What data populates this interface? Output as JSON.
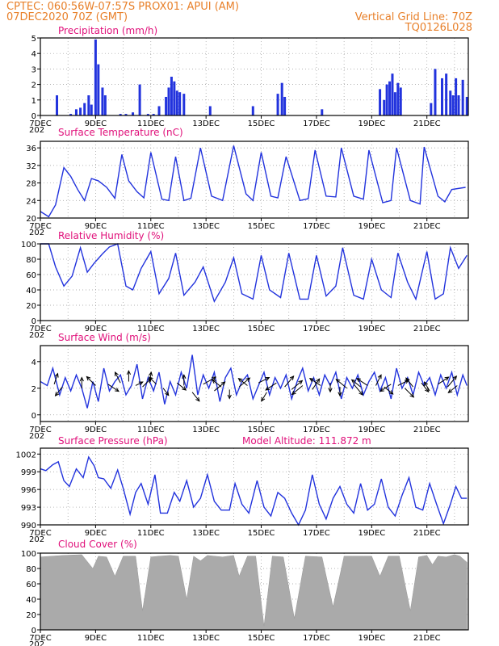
{
  "header": {
    "line1_left": "CPTEC:   060:56W-07:57S   PROX01: APUI (AM)",
    "line2_left": "07DEC2020 70Z (GMT)",
    "line2_right": "Vertical Grid Line: 70Z",
    "line3_right": "TQ0126L028"
  },
  "colors": {
    "header": "#e8802a",
    "title": "#e0107a",
    "series": "#2233dd",
    "cloud": "#aaaaaa",
    "wind_arrow": "#000000"
  },
  "x_tick_labels": [
    "7DEC",
    "9DEC",
    "11DEC",
    "13DEC",
    "15DEC",
    "17DEC",
    "19DEC",
    "21DEC"
  ],
  "x_year_fragment": "202",
  "model_altitude": "Model Altitude: 111.872 m",
  "chart_data": [
    {
      "id": "precip",
      "type": "bar",
      "title": "Precipitation (mm/h)",
      "x_unit": "days since 7DEC 00Z",
      "ylim": [
        0,
        5
      ],
      "yticks": [
        "0",
        "1",
        "2",
        "3",
        "4",
        "5"
      ],
      "x": [
        0.6,
        1.1,
        1.3,
        1.45,
        1.6,
        1.75,
        1.85,
        2.0,
        2.1,
        2.25,
        2.35,
        2.9,
        3.1,
        3.35,
        3.6,
        3.9,
        4.1,
        4.3,
        4.55,
        4.65,
        4.75,
        4.85,
        4.95,
        5.05,
        5.2,
        6.15,
        7.7,
        8.6,
        8.75,
        8.85,
        10.2,
        12.3,
        12.45,
        12.55,
        12.65,
        12.75,
        12.85,
        12.95,
        13.05,
        14.15,
        14.3,
        14.55,
        14.7,
        14.85,
        14.95,
        15.05,
        15.15,
        15.3,
        15.45
      ],
      "values": [
        1.3,
        0.1,
        0.4,
        0.5,
        0.8,
        1.3,
        0.7,
        4.9,
        3.3,
        1.8,
        1.3,
        0.1,
        0.1,
        0.2,
        2.0,
        0.1,
        0.1,
        0.6,
        1.2,
        1.8,
        2.5,
        2.2,
        1.6,
        1.5,
        1.4,
        0.6,
        0.6,
        1.4,
        2.1,
        1.2,
        0.4,
        1.7,
        1.0,
        2.0,
        2.2,
        2.7,
        1.5,
        2.1,
        1.8,
        0.8,
        3.0,
        2.4,
        2.7,
        1.6,
        1.3,
        2.4,
        1.3,
        2.3,
        1.2
      ]
    },
    {
      "id": "temp",
      "type": "line",
      "title": "Surface Temperature (nC)",
      "x_unit": "days since 7DEC 00Z",
      "ylim": [
        20,
        37.5
      ],
      "yticks": [
        "20",
        "24",
        "28",
        "32",
        "36"
      ],
      "x": [
        0,
        0.3,
        0.55,
        0.85,
        1.1,
        1.35,
        1.6,
        1.85,
        2.1,
        2.4,
        2.7,
        2.95,
        3.2,
        3.5,
        3.75,
        4.0,
        4.4,
        4.65,
        4.9,
        5.2,
        5.45,
        5.8,
        6.2,
        6.6,
        7.0,
        7.45,
        7.7,
        8.0,
        8.35,
        8.6,
        8.9,
        9.4,
        9.7,
        9.95,
        10.35,
        10.7,
        10.9,
        11.35,
        11.7,
        11.9,
        12.4,
        12.7,
        12.9,
        13.4,
        13.75,
        13.9,
        14.4,
        14.65,
        14.9,
        15.4
      ],
      "y": [
        21.5,
        20.3,
        23.0,
        31.5,
        29.5,
        26.5,
        24.0,
        29.0,
        28.5,
        27.0,
        24.5,
        34.5,
        28.5,
        26.0,
        24.6,
        35.0,
        24.3,
        24.0,
        34.0,
        24.0,
        24.5,
        36.0,
        25.0,
        24.0,
        36.5,
        25.5,
        24.0,
        35.0,
        25.0,
        24.6,
        34.0,
        24.0,
        24.4,
        35.5,
        25.0,
        24.8,
        36.0,
        25.0,
        24.3,
        35.5,
        23.5,
        24.0,
        36.0,
        24.0,
        23.2,
        36.2,
        25.0,
        23.7,
        26.5,
        27.0
      ]
    },
    {
      "id": "rh",
      "type": "line",
      "title": "Relative Humidity (%)",
      "x_unit": "days since 7DEC 00Z",
      "ylim": [
        0,
        100
      ],
      "yticks": [
        "0",
        "20",
        "40",
        "60",
        "80",
        "100"
      ],
      "x": [
        0,
        0.3,
        0.55,
        0.85,
        1.15,
        1.45,
        1.7,
        1.95,
        2.25,
        2.5,
        2.8,
        3.1,
        3.35,
        3.65,
        4.0,
        4.3,
        4.65,
        4.9,
        5.2,
        5.6,
        5.9,
        6.3,
        6.7,
        7.0,
        7.3,
        7.7,
        8.0,
        8.3,
        8.7,
        9.0,
        9.4,
        9.7,
        10.0,
        10.35,
        10.7,
        10.95,
        11.35,
        11.7,
        12.0,
        12.35,
        12.7,
        12.95,
        13.3,
        13.6,
        14.0,
        14.3,
        14.6,
        14.85,
        15.15,
        15.45
      ],
      "y": [
        100,
        100,
        70,
        45,
        58,
        95,
        63,
        75,
        87,
        96,
        100,
        45,
        40,
        68,
        90,
        35,
        55,
        88,
        33,
        50,
        70,
        25,
        50,
        82,
        35,
        28,
        85,
        40,
        30,
        88,
        28,
        28,
        85,
        32,
        45,
        95,
        33,
        28,
        80,
        40,
        30,
        88,
        50,
        28,
        90,
        28,
        35,
        95,
        68,
        85
      ]
    },
    {
      "id": "wind",
      "type": "line",
      "title": "Surface Wind (m/s)",
      "x_unit": "days since 7DEC 00Z",
      "ylim": [
        -0.5,
        5.2
      ],
      "yticks": [
        "0",
        "2",
        "4"
      ],
      "x": [
        0,
        0.25,
        0.45,
        0.7,
        0.9,
        1.1,
        1.3,
        1.5,
        1.7,
        1.9,
        2.1,
        2.3,
        2.5,
        2.7,
        2.9,
        3.1,
        3.3,
        3.5,
        3.7,
        3.9,
        4.1,
        4.3,
        4.5,
        4.7,
        4.9,
        5.1,
        5.3,
        5.5,
        5.7,
        5.9,
        6.1,
        6.3,
        6.5,
        6.7,
        6.9,
        7.1,
        7.3,
        7.5,
        7.7,
        7.9,
        8.1,
        8.3,
        8.5,
        8.7,
        8.9,
        9.1,
        9.3,
        9.5,
        9.7,
        9.9,
        10.1,
        10.3,
        10.5,
        10.7,
        10.9,
        11.1,
        11.3,
        11.5,
        11.7,
        11.9,
        12.1,
        12.3,
        12.5,
        12.7,
        12.9,
        13.1,
        13.3,
        13.5,
        13.7,
        13.9,
        14.1,
        14.3,
        14.5,
        14.7,
        14.9,
        15.1,
        15.3,
        15.45
      ],
      "y": [
        2.5,
        2.2,
        3.5,
        1.5,
        2.8,
        1.8,
        3.0,
        2.0,
        0.5,
        2.5,
        1.0,
        3.5,
        1.8,
        2.5,
        3.0,
        1.5,
        2.2,
        3.8,
        1.2,
        2.8,
        1.8,
        3.2,
        0.8,
        2.5,
        1.5,
        3.2,
        2.0,
        4.5,
        1.5,
        3.0,
        2.0,
        3.2,
        1.0,
        2.8,
        3.5,
        1.5,
        2.5,
        3.0,
        1.2,
        2.2,
        3.2,
        1.5,
        2.8,
        2.0,
        3.0,
        1.2,
        2.5,
        3.5,
        1.8,
        2.8,
        1.5,
        3.0,
        2.2,
        3.2,
        1.2,
        2.8,
        2.0,
        3.0,
        1.5,
        2.5,
        3.2,
        1.8,
        2.8,
        1.2,
        3.5,
        2.0,
        2.8,
        1.5,
        3.2,
        2.2,
        2.8,
        1.5,
        3.0,
        2.0,
        3.2,
        1.5,
        3.0,
        2.2
      ]
    },
    {
      "id": "wind_vectors",
      "type": "vector",
      "title": "",
      "x_unit": "days since 7DEC 00Z",
      "x": [
        0.5,
        0.8,
        1.5,
        2.0,
        2.45,
        2.9,
        3.2,
        3.45,
        3.7,
        3.95,
        4.2,
        4.45,
        4.95,
        5.2,
        5.5,
        5.9,
        6.3,
        6.55,
        6.85,
        7.2,
        7.5,
        7.9,
        8.2,
        8.55,
        8.85,
        9.1,
        9.5,
        9.85,
        10.15,
        10.5,
        10.85,
        11.1,
        11.35,
        11.6,
        11.85,
        12.15,
        12.45,
        12.7,
        12.95,
        13.2,
        13.5,
        13.8,
        14.1,
        14.4,
        14.75,
        15.1
      ],
      "y": [
        2.3,
        2.1,
        2.0,
        2.2,
        2.3,
        2.4,
        2.5,
        2.2,
        2.1,
        2.4,
        2.3,
        2.0,
        2.4,
        2.2,
        1.7,
        2.3,
        1.8,
        2.1,
        1.9,
        2.1,
        2.2,
        2.4,
        1.7,
        2.4,
        2.1,
        1.9,
        2.2,
        1.9,
        2.2,
        2.4,
        2.1,
        2.0,
        2.3,
        2.1,
        2.2,
        2.2,
        2.1,
        2.3,
        2.2,
        2.0,
        2.1,
        2.4,
        1.8,
        2.3,
        2.1,
        2.2
      ],
      "u": [
        0.2,
        -0.4,
        0.0,
        -0.5,
        0.6,
        -0.3,
        0.0,
        0.4,
        0.5,
        0.1,
        -0.4,
        0.3,
        0.5,
        0.0,
        0.4,
        0.7,
        0.6,
        -0.5,
        0.0,
        0.6,
        -0.5,
        0.6,
        -0.3,
        -0.6,
        0.5,
        0.6,
        -0.6,
        0.4,
        -0.6,
        0.0,
        0.0,
        -0.6,
        0.5,
        -0.5,
        -0.6,
        0.3,
        0.5,
        -0.6,
        0.6,
        0.5,
        -0.4,
        0.4,
        -0.3,
        0.6,
        0.5,
        -0.5
      ],
      "v": [
        0.6,
        -0.5,
        0.6,
        0.5,
        -0.4,
        0.6,
        0.6,
        0.2,
        0.5,
        0.6,
        0.4,
        -0.4,
        -0.4,
        0.6,
        -0.5,
        0.4,
        0.5,
        0.4,
        -0.5,
        0.5,
        0.4,
        0.3,
        -0.5,
        -0.4,
        0.6,
        0.5,
        -0.5,
        0.6,
        0.4,
        -0.5,
        -0.5,
        0.5,
        -0.6,
        0.4,
        0.4,
        0.6,
        -0.4,
        -0.4,
        0.3,
        -0.5,
        0.5,
        -0.5,
        0.5,
        0.4,
        0.6,
        -0.4
      ]
    },
    {
      "id": "pressure",
      "type": "line",
      "title": "Surface Pressure (hPa)",
      "x_unit": "days since 7DEC 00Z",
      "ylim": [
        990,
        1003
      ],
      "yticks": [
        "990",
        "993",
        "996",
        "999",
        "1002"
      ],
      "x": [
        0,
        0.2,
        0.45,
        0.65,
        0.85,
        1.05,
        1.3,
        1.55,
        1.75,
        1.95,
        2.1,
        2.3,
        2.55,
        2.8,
        3.0,
        3.25,
        3.45,
        3.65,
        3.9,
        4.15,
        4.35,
        4.6,
        4.85,
        5.05,
        5.3,
        5.55,
        5.8,
        6.05,
        6.3,
        6.55,
        6.85,
        7.05,
        7.3,
        7.55,
        7.85,
        8.1,
        8.35,
        8.6,
        8.85,
        9.1,
        9.35,
        9.6,
        9.85,
        10.1,
        10.35,
        10.6,
        10.85,
        11.1,
        11.35,
        11.6,
        11.85,
        12.1,
        12.35,
        12.6,
        12.85,
        13.1,
        13.35,
        13.6,
        13.85,
        14.1,
        14.35,
        14.6,
        14.85,
        15.05,
        15.25,
        15.45
      ],
      "y": [
        999.5,
        999.2,
        1000.2,
        1000.7,
        997.5,
        996.5,
        999.5,
        998.0,
        1001.5,
        1000.0,
        998.0,
        997.8,
        996.2,
        999.3,
        996.2,
        991.8,
        995.5,
        997.0,
        993.5,
        998.5,
        992.0,
        992.0,
        995.5,
        994.0,
        997.5,
        993.0,
        994.5,
        998.5,
        994.0,
        992.5,
        992.5,
        997.0,
        993.5,
        992.0,
        997.5,
        993.0,
        991.5,
        995.5,
        994.5,
        992.0,
        990.0,
        992.5,
        998.5,
        993.5,
        991.0,
        994.5,
        996.5,
        993.5,
        992.0,
        997.0,
        992.5,
        993.5,
        997.8,
        993.0,
        991.5,
        995.0,
        998.0,
        993.0,
        992.5,
        997.0,
        993.5,
        990.2,
        993.5,
        996.5,
        994.5,
        994.5
      ]
    },
    {
      "id": "cloud",
      "type": "area",
      "title": "Cloud Cover (%)",
      "x_unit": "days since 7DEC 00Z",
      "ylim": [
        0,
        100
      ],
      "yticks": [
        "0",
        "20",
        "40",
        "60",
        "80",
        "100"
      ],
      "x": [
        0,
        0.8,
        1.5,
        1.9,
        2.1,
        2.4,
        2.7,
        3.0,
        3.2,
        3.45,
        3.7,
        4.0,
        4.3,
        4.7,
        5.0,
        5.3,
        5.55,
        5.8,
        6.05,
        6.3,
        6.6,
        7.0,
        7.2,
        7.5,
        7.8,
        8.1,
        8.4,
        8.8,
        9.2,
        9.6,
        10.2,
        10.6,
        11.0,
        11.3,
        11.7,
        12.0,
        12.3,
        12.6,
        13.0,
        13.4,
        13.7,
        14.0,
        14.2,
        14.4,
        14.7,
        15.0,
        15.2,
        15.45
      ],
      "y": [
        95,
        97,
        98,
        80,
        96,
        95,
        70,
        96,
        96,
        96,
        25,
        95,
        96,
        97,
        96,
        40,
        96,
        90,
        97,
        96,
        95,
        97,
        70,
        96,
        96,
        5,
        96,
        95,
        15,
        96,
        95,
        30,
        96,
        96,
        96,
        96,
        70,
        96,
        96,
        25,
        95,
        97,
        85,
        96,
        95,
        98,
        96,
        88
      ]
    }
  ]
}
